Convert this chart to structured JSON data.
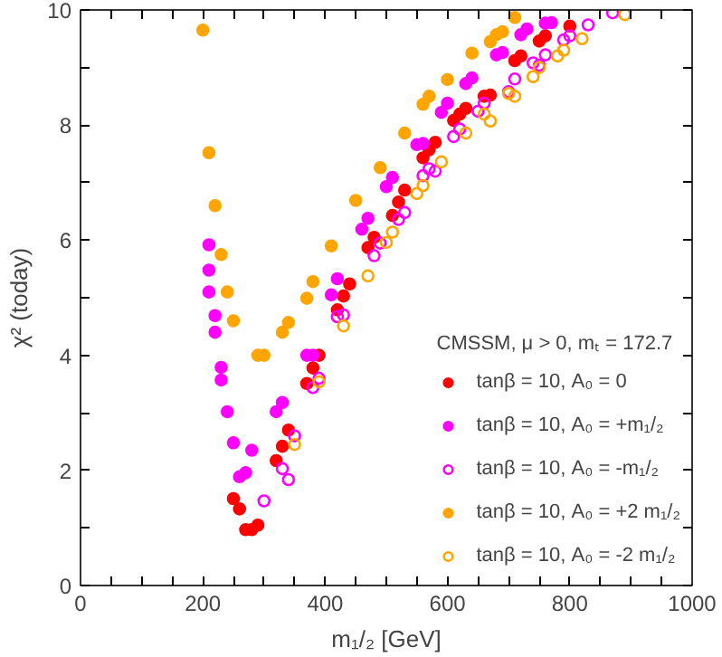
{
  "chart_data": {
    "type": "scatter",
    "xlabel": "m₁/₂ [GeV]",
    "ylabel": "χ² (today)",
    "legend_title": "CMSSM, μ > 0, mₜ = 172.7",
    "legend": "bottom right",
    "grid": false,
    "xlim": [
      0,
      1000
    ],
    "ylim": [
      0,
      10
    ],
    "xticks": [
      0,
      {
        "value": 50,
        "label": null
      },
      {
        "value": 100,
        "label": null
      },
      {
        "value": 150,
        "label": null
      },
      200,
      {
        "value": 250,
        "label": null
      },
      {
        "value": 300,
        "label": null
      },
      {
        "value": 350,
        "label": null
      },
      400,
      {
        "value": 450,
        "label": null
      },
      {
        "value": 500,
        "label": null
      },
      {
        "value": 550,
        "label": null
      },
      600,
      {
        "value": 650,
        "label": null
      },
      {
        "value": 700,
        "label": null
      },
      {
        "value": 750,
        "label": null
      },
      800,
      {
        "value": 850,
        "label": null
      },
      {
        "value": 900,
        "label": null
      },
      {
        "value": 950,
        "label": null
      },
      1000
    ],
    "yticks": [
      0,
      {
        "value": 1,
        "label": null
      },
      2,
      {
        "value": 3,
        "label": null
      },
      4,
      {
        "value": 5,
        "label": null
      },
      6,
      {
        "value": 7,
        "label": null
      },
      8,
      {
        "value": 9,
        "label": null
      },
      10
    ],
    "series": [
      {
        "name": "tanβ = 10, A₀ = 0",
        "color": "#ff0000",
        "marker": "circle",
        "x": [
          250,
          260,
          270,
          280,
          290,
          320,
          330,
          340,
          370,
          380,
          390,
          420,
          430,
          440,
          470,
          480,
          510,
          520,
          530,
          560,
          570,
          580,
          610,
          620,
          630,
          660,
          670,
          710,
          720,
          750,
          760,
          800
        ],
        "values": [
          1.51,
          1.33,
          0.97,
          0.97,
          1.05,
          2.17,
          2.42,
          2.7,
          3.51,
          3.78,
          4.0,
          4.79,
          5.03,
          5.24,
          5.87,
          6.05,
          6.43,
          6.66,
          6.87,
          7.43,
          7.57,
          7.7,
          8.08,
          8.19,
          8.29,
          8.5,
          8.52,
          9.12,
          9.2,
          9.46,
          9.55,
          9.72
        ]
      },
      {
        "name": "tanβ = 10, A₀ = +m₁/₂",
        "color": "#ff00ff",
        "marker": "circle",
        "x": [
          210,
          210,
          210,
          220,
          220,
          230,
          230,
          240,
          250,
          260,
          270,
          280,
          320,
          330,
          370,
          380,
          410,
          420,
          460,
          470,
          500,
          510,
          550,
          560,
          590,
          600,
          630,
          640,
          680,
          690,
          720,
          730,
          760,
          770
        ],
        "values": [
          5.92,
          5.48,
          5.1,
          4.69,
          4.4,
          3.79,
          3.57,
          3.02,
          2.48,
          1.89,
          1.96,
          2.35,
          3.02,
          3.18,
          4.0,
          4.0,
          5.05,
          5.33,
          6.19,
          6.38,
          6.93,
          7.09,
          7.66,
          7.68,
          8.22,
          8.38,
          8.72,
          8.82,
          9.22,
          9.26,
          9.57,
          9.67,
          9.77,
          9.78
        ]
      },
      {
        "name": "tanβ = 10, A₀ = -m₁/₂",
        "color": "#ff00ff",
        "marker": "circle_open",
        "x": [
          300,
          330,
          340,
          350,
          380,
          390,
          420,
          430,
          480,
          490,
          520,
          530,
          560,
          570,
          580,
          610,
          620,
          650,
          660,
          700,
          710,
          740,
          750,
          760,
          790,
          800,
          830,
          870
        ],
        "values": [
          1.47,
          2.03,
          1.84,
          2.6,
          3.44,
          3.6,
          4.67,
          4.7,
          5.73,
          5.95,
          6.36,
          6.48,
          7.12,
          7.24,
          7.2,
          7.8,
          7.93,
          8.24,
          8.38,
          8.58,
          8.8,
          9.08,
          9.04,
          9.22,
          9.48,
          9.55,
          9.74,
          9.95
        ]
      },
      {
        "name": "tanβ = 10, A₀ = +2 m₁/₂",
        "color": "#ffa500",
        "marker": "circle",
        "x": [
          200,
          210,
          220,
          230,
          240,
          250,
          290,
          300,
          330,
          340,
          370,
          380,
          410,
          450,
          490,
          530,
          560,
          570,
          600,
          640,
          670,
          680,
          690,
          710
        ],
        "values": [
          9.65,
          7.52,
          6.6,
          5.75,
          5.1,
          4.6,
          4.0,
          4.0,
          4.4,
          4.57,
          4.99,
          5.28,
          5.9,
          6.69,
          7.26,
          7.86,
          8.36,
          8.5,
          8.79,
          9.25,
          9.45,
          9.57,
          9.62,
          9.87
        ]
      },
      {
        "name": "tanβ = 10, A₀ = -2 m₁/₂",
        "color": "#ffa500",
        "marker": "circle_open",
        "x": [
          350,
          390,
          430,
          470,
          500,
          510,
          550,
          560,
          590,
          630,
          660,
          670,
          700,
          710,
          740,
          750,
          780,
          790,
          820,
          890
        ],
        "values": [
          2.45,
          3.54,
          4.51,
          5.38,
          5.96,
          6.14,
          6.81,
          6.95,
          7.36,
          7.86,
          8.19,
          8.07,
          8.55,
          8.5,
          8.84,
          9.0,
          9.2,
          9.3,
          9.5,
          9.92
        ]
      }
    ]
  }
}
